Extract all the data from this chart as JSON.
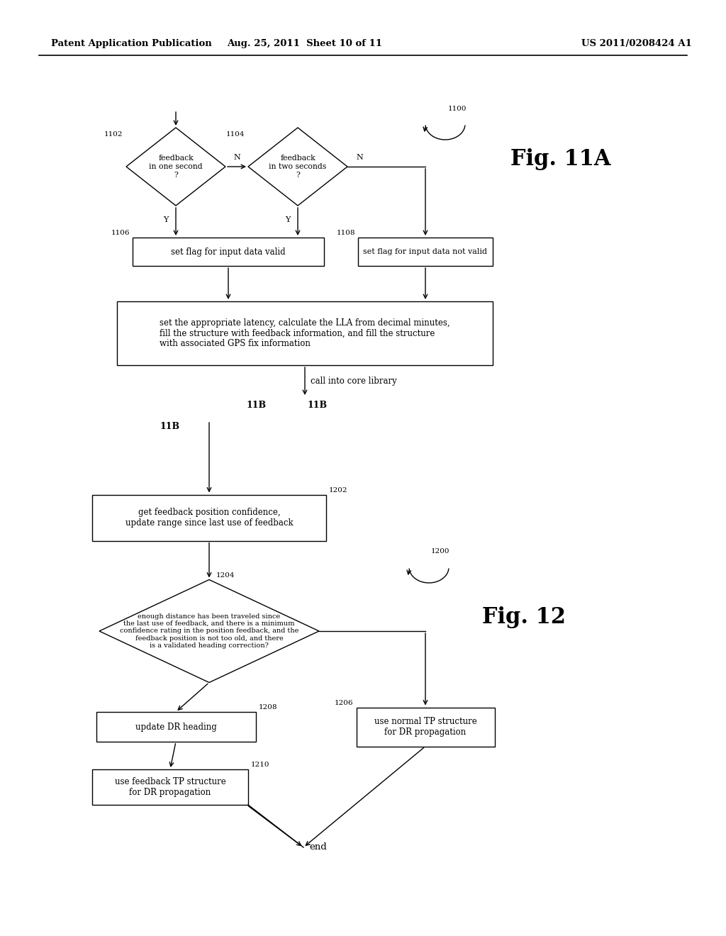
{
  "bg_color": "#ffffff",
  "header_left": "Patent Application Publication",
  "header_mid": "Aug. 25, 2011  Sheet 10 of 11",
  "header_right": "US 2011/0208424 A1",
  "fig11a_label": "Fig. 11A",
  "fig12_label": "Fig. 12"
}
